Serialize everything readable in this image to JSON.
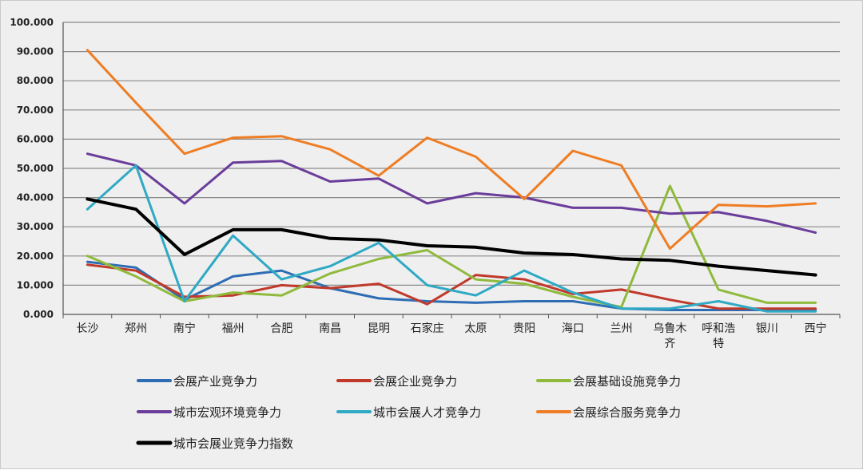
{
  "chart_data": {
    "type": "line",
    "title": "",
    "xlabel": "",
    "ylabel": "",
    "ylim": [
      0,
      100
    ],
    "yticks": [
      "0.000",
      "10.000",
      "20.000",
      "30.000",
      "40.000",
      "50.000",
      "60.000",
      "70.000",
      "80.000",
      "90.000",
      "100.000"
    ],
    "grid": true,
    "legend_position": "bottom",
    "categories": [
      [
        "长沙"
      ],
      [
        "郑州"
      ],
      [
        "南宁"
      ],
      [
        "福州"
      ],
      [
        "合肥"
      ],
      [
        "南昌"
      ],
      [
        "昆明"
      ],
      [
        "石家庄"
      ],
      [
        "太原"
      ],
      [
        "贵阳"
      ],
      [
        "海口"
      ],
      [
        "兰州"
      ],
      [
        "乌鲁木",
        "齐"
      ],
      [
        "呼和浩",
        "特"
      ],
      [
        "银川"
      ],
      [
        "西宁"
      ]
    ],
    "series": [
      {
        "name": "会展产业竞争力",
        "color": "#2e6db4",
        "width": 3,
        "values": [
          18,
          16,
          5,
          13,
          15,
          9,
          5.5,
          4.5,
          4,
          4.5,
          4.5,
          2,
          1.5,
          1.5,
          1.5,
          1.5
        ]
      },
      {
        "name": "会展企业竞争力",
        "color": "#c0392b",
        "width": 3,
        "values": [
          17,
          15,
          6,
          6.5,
          10,
          9,
          10.5,
          3.5,
          13.5,
          12,
          7,
          8.5,
          5,
          2,
          2,
          2
        ]
      },
      {
        "name": "会展基础设施竞争力",
        "color": "#8fba3c",
        "width": 3,
        "values": [
          20,
          13,
          4.5,
          7.5,
          6.5,
          14,
          19,
          22,
          12,
          10.5,
          6,
          2.5,
          44,
          8.5,
          4,
          4
        ]
      },
      {
        "name": "城市宏观环境竞争力",
        "color": "#6a3d9a",
        "width": 3,
        "values": [
          55,
          51,
          38,
          52,
          52.5,
          45.5,
          46.5,
          38,
          41.5,
          40,
          36.5,
          36.5,
          34.5,
          35,
          32,
          28
        ]
      },
      {
        "name": "城市会展人才竞争力",
        "color": "#2fa9c4",
        "width": 3,
        "values": [
          36,
          51,
          4.5,
          27,
          12,
          16.5,
          24.5,
          10,
          6.5,
          15,
          7.5,
          2,
          2,
          4.5,
          1,
          1
        ]
      },
      {
        "name": "会展综合服务竞争力",
        "color": "#ee7d24",
        "width": 3,
        "values": [
          90.5,
          72.5,
          55,
          60.5,
          61,
          56.5,
          47.5,
          60.5,
          54,
          39.5,
          56,
          51,
          22.5,
          37.5,
          37,
          38
        ]
      },
      {
        "name": "城市会展业竞争力指数",
        "color": "#000000",
        "width": 4,
        "values": [
          39.5,
          36,
          20.5,
          29,
          29,
          26,
          25.5,
          23.5,
          23,
          21,
          20.5,
          19,
          18.5,
          16.5,
          15,
          13.5
        ]
      }
    ]
  }
}
